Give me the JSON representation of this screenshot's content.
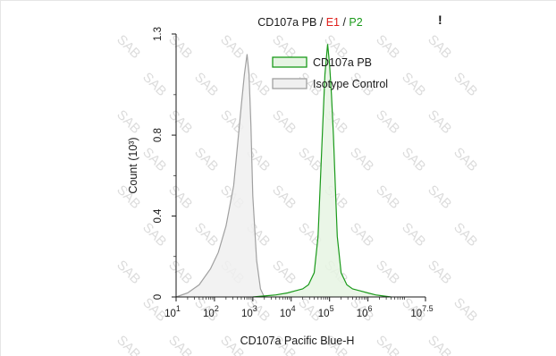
{
  "title": {
    "part1": "CD107a PB",
    "sep1": " / ",
    "part2": "E1",
    "sep2": " / ",
    "part3": "P2"
  },
  "flag": "!",
  "watermark": "SAB",
  "colors": {
    "e1": "#e0201c",
    "p2": "#1a9a1a",
    "sample_line": "#1a9a1a",
    "sample_fill": "#e6f4e3",
    "control_line": "#a0a0a0",
    "control_fill": "#f0f0f0"
  },
  "chart_data": {
    "type": "area",
    "xlabel": "CD107a Pacific Blue-H",
    "ylabel": "Count (10³)",
    "xscale": "log",
    "xlim": [
      1,
      7.5
    ],
    "ylim": [
      0,
      1.3
    ],
    "x_ticks": [
      {
        "value": 1,
        "base": "10",
        "exp": "1"
      },
      {
        "value": 2,
        "base": "10",
        "exp": "2"
      },
      {
        "value": 3,
        "base": "10",
        "exp": "3"
      },
      {
        "value": 4,
        "base": "10",
        "exp": "4"
      },
      {
        "value": 5,
        "base": "10",
        "exp": "5"
      },
      {
        "value": 6,
        "base": "10",
        "exp": "6"
      },
      {
        "value": 7.5,
        "base": "10",
        "exp": "7.5"
      }
    ],
    "y_ticks": [
      {
        "value": 0,
        "label": "0"
      },
      {
        "value": 0.4,
        "label": "0.4"
      },
      {
        "value": 0.8,
        "label": "0.8"
      },
      {
        "value": 1.3,
        "label": "1.3"
      }
    ],
    "legend_position": "top-right",
    "series": [
      {
        "name": "CD107a PB",
        "x": [
          3.0,
          3.3,
          3.6,
          3.9,
          4.1,
          4.3,
          4.45,
          4.6,
          4.7,
          4.8,
          4.88,
          4.95,
          5.0,
          5.05,
          5.1,
          5.15,
          5.2,
          5.3,
          5.45,
          5.6,
          5.8,
          6.0,
          6.2,
          6.4,
          6.6
        ],
        "y": [
          0,
          0.005,
          0.01,
          0.02,
          0.03,
          0.04,
          0.06,
          0.12,
          0.3,
          0.75,
          1.1,
          1.25,
          1.15,
          1.0,
          0.8,
          0.55,
          0.3,
          0.12,
          0.06,
          0.04,
          0.03,
          0.02,
          0.01,
          0.005,
          0
        ]
      },
      {
        "name": "Isotype Control",
        "x": [
          1.0,
          1.3,
          1.6,
          1.9,
          2.1,
          2.3,
          2.5,
          2.6,
          2.7,
          2.78,
          2.85,
          2.9,
          2.95,
          3.0,
          3.1,
          3.2,
          3.3
        ],
        "y": [
          0,
          0.02,
          0.06,
          0.14,
          0.22,
          0.35,
          0.55,
          0.75,
          0.95,
          1.1,
          1.2,
          1.1,
          0.85,
          0.5,
          0.18,
          0.04,
          0
        ]
      }
    ]
  }
}
